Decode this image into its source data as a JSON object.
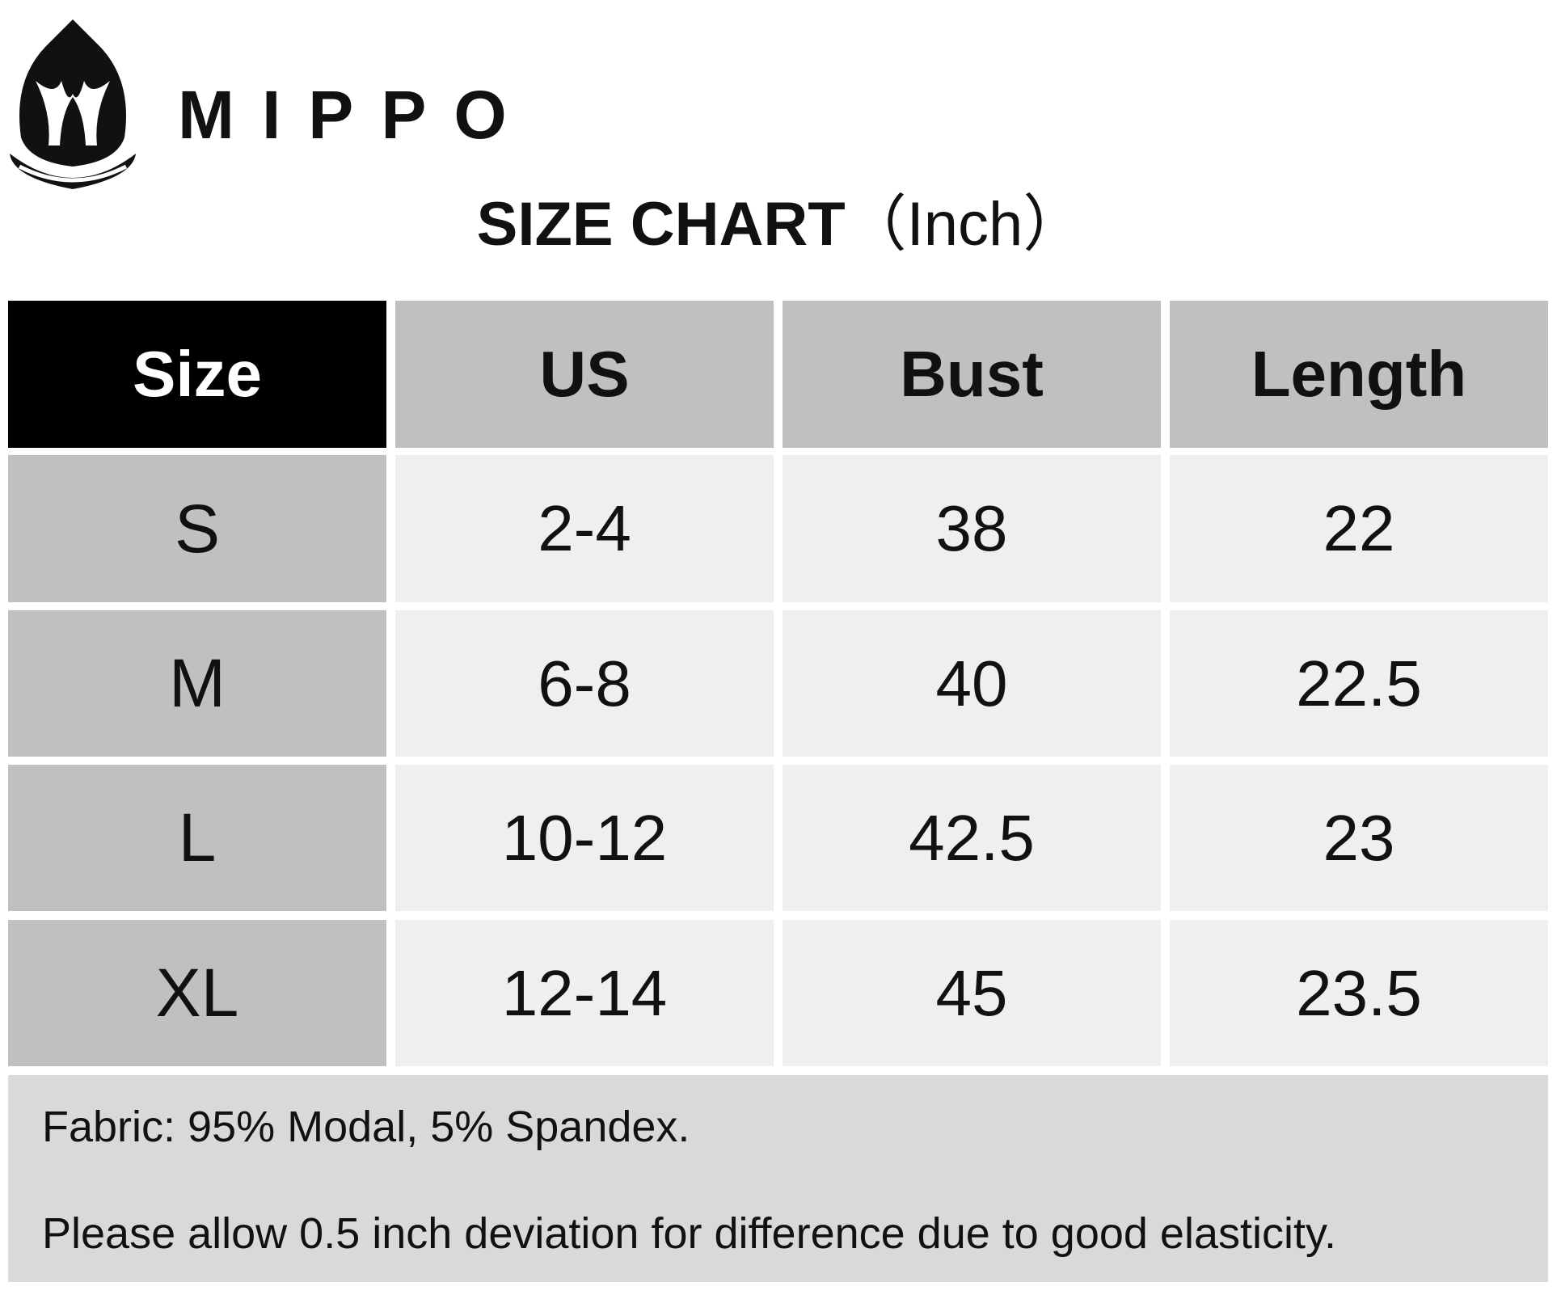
{
  "header": {
    "brand": "MIPPO",
    "title": "SIZE CHART",
    "unit": "（Inch）"
  },
  "table": {
    "columns": [
      "Size",
      "US",
      "Bust",
      "Length"
    ],
    "rows": [
      [
        "S",
        "2-4",
        "38",
        "22"
      ],
      [
        "M",
        "6-8",
        "40",
        "22.5"
      ],
      [
        "L",
        "10-12",
        "42.5",
        "23"
      ],
      [
        "XL",
        "12-14",
        "45",
        "23.5"
      ]
    ]
  },
  "notes": [
    "Fabric: 95% Modal, 5% Spandex.",
    "Please allow 0.5 inch deviation for difference due to good elasticity."
  ]
}
